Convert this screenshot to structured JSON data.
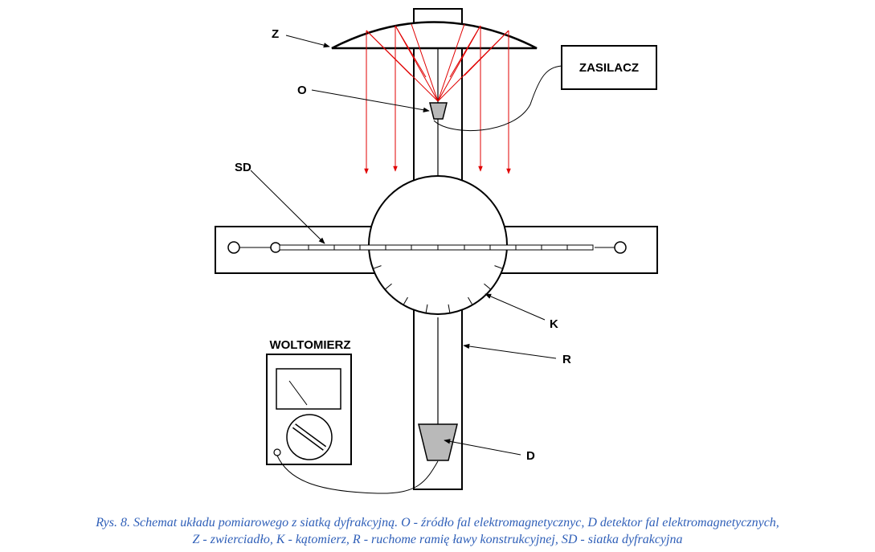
{
  "labels": {
    "z": "Z",
    "o": "O",
    "sd": "SD",
    "k": "K",
    "r": "R",
    "d": "D",
    "zasilacz": "ZASILACZ",
    "woltomierz": "WOLTOMIERZ"
  },
  "caption": {
    "line1": "Rys. 8. Schemat układu pomiarowego z siatką dyfrakcyjną. O - źródło fal elektromagnetycznyc, D detektor fal elektromagnetycznych,",
    "line2": "Z - zwierciadło, K - kątomierz, R - ruchome ramię ławy konstrukcyjnej, SD - siatka dyfrakcyjna"
  },
  "colors": {
    "rays": "#e00000",
    "caption": "#2f5fb8",
    "device_fill": "#b9b9b9"
  }
}
